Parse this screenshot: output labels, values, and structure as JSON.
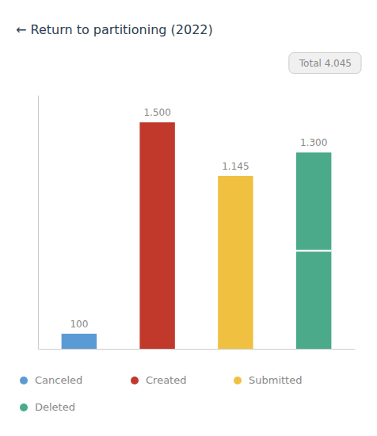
{
  "chart_data": {
    "type": "bar",
    "title": "← Return to partitioning (2022)",
    "annotations": [
      "Total 4.045"
    ],
    "categories": [
      "Canceled",
      "Created",
      "Submitted",
      "Deleted"
    ],
    "values": [
      100,
      1500,
      1145,
      1300
    ],
    "value_labels": [
      "100",
      "1.500",
      "1.145",
      "1.300"
    ],
    "splits": [
      null,
      null,
      null,
      650
    ],
    "colors": [
      "#5b9bd5",
      "#c0392b",
      "#f0c040",
      "#4aaa8a"
    ],
    "ylim": [
      0,
      1680
    ],
    "yticks": [],
    "grid": false,
    "data_labels": true,
    "tick_labels": false,
    "legend": "bottom"
  }
}
